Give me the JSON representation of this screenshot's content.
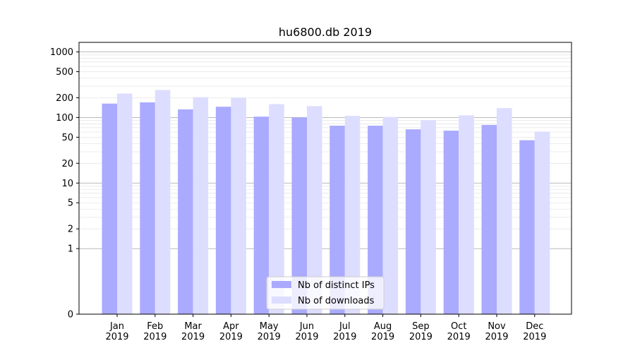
{
  "chart_data": {
    "type": "bar",
    "title": "hu6800.db 2019",
    "xlabel": "",
    "ylabel": "",
    "y_scale": "symlog",
    "ylim": [
      0,
      1400
    ],
    "yticks": [
      0,
      1,
      2,
      5,
      10,
      20,
      50,
      100,
      200,
      500,
      1000
    ],
    "ytick_labels": [
      "0",
      "1",
      "2",
      "5",
      "10",
      "20",
      "50",
      "100",
      "200",
      "500",
      "1000"
    ],
    "categories": [
      "Jan\n2019",
      "Feb\n2019",
      "Mar\n2019",
      "Apr\n2019",
      "May\n2019",
      "Jun\n2019",
      "Jul\n2019",
      "Aug\n2019",
      "Sep\n2019",
      "Oct\n2019",
      "Nov\n2019",
      "Dec\n2019"
    ],
    "series": [
      {
        "name": "Nb of distinct IPs",
        "color": "#aaaaff",
        "values": [
          163,
          170,
          133,
          146,
          103,
          100,
          75,
          75,
          66,
          63,
          77,
          45
        ]
      },
      {
        "name": "Nb of downloads",
        "color": "#ddddff",
        "values": [
          232,
          262,
          204,
          200,
          160,
          149,
          106,
          102,
          91,
          108,
          139,
          61
        ]
      }
    ],
    "grid": true,
    "legend_position": "bottom-center"
  }
}
